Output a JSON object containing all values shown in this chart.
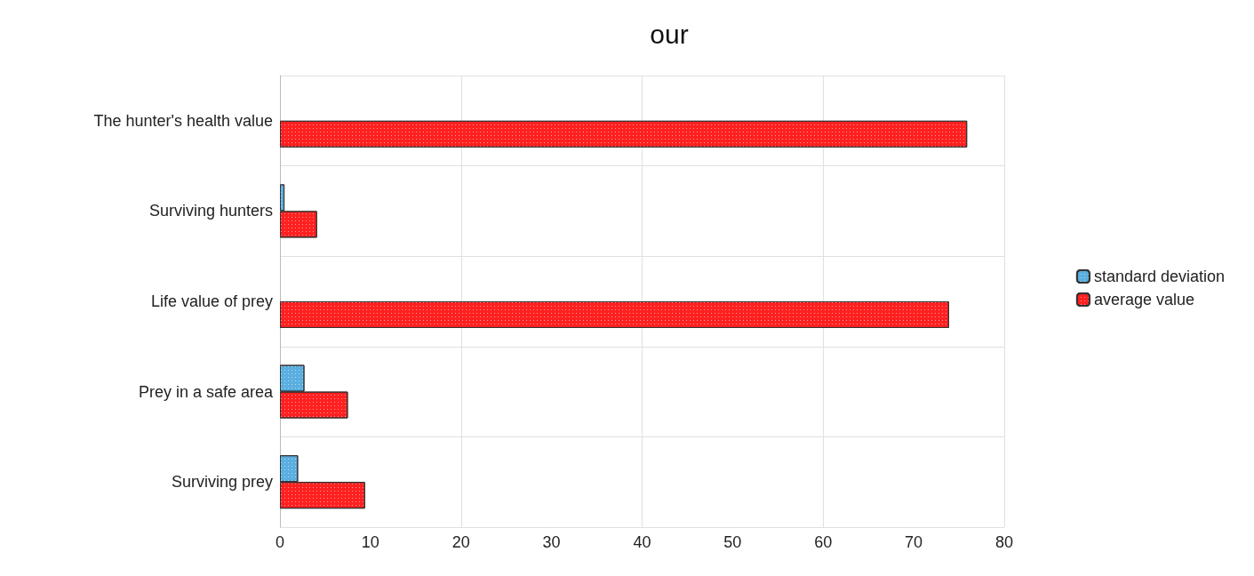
{
  "chart_data": {
    "type": "bar",
    "orientation": "horizontal",
    "title": "our",
    "categories": [
      "The hunter's health value",
      "Surviving hunters",
      "Life value of prey",
      "Prey in a safe area",
      "Surviving prey"
    ],
    "series": [
      {
        "name": "standard deviation",
        "color": "#5aaee0",
        "values": [
          null,
          0.5,
          null,
          2.7,
          2.0
        ]
      },
      {
        "name": "average value",
        "color": "#ff2020",
        "values": [
          75.9,
          4.1,
          73.9,
          7.5,
          9.4
        ]
      }
    ],
    "xlim": [
      0,
      80
    ],
    "xticks": [
      0,
      10,
      20,
      30,
      40,
      50,
      60,
      70,
      80
    ],
    "grid": true,
    "legend": "right"
  }
}
